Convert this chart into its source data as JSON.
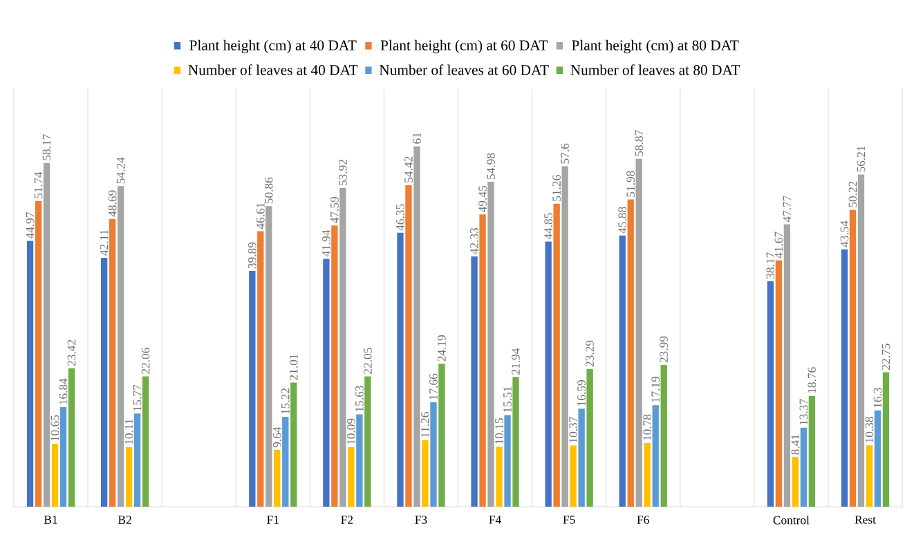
{
  "chart_data": {
    "type": "bar",
    "categories": [
      "B1",
      "B2",
      null,
      "F1",
      "F2",
      "F3",
      "F4",
      "F5",
      "F6",
      null,
      "Control",
      "Rest"
    ],
    "series": [
      {
        "name": "Plant height (cm) at 40 DAT",
        "color": "#4472c4",
        "values": [
          44.97,
          42.11,
          null,
          39.89,
          41.94,
          46.35,
          42.33,
          44.85,
          45.88,
          null,
          38.17,
          43.54
        ]
      },
      {
        "name": "Plant height (cm) at 60 DAT",
        "color": "#ed7d31",
        "values": [
          51.74,
          48.69,
          null,
          46.61,
          47.59,
          54.42,
          49.45,
          51.26,
          51.98,
          null,
          41.67,
          50.22
        ]
      },
      {
        "name": "Plant height (cm) at 80 DAT",
        "color": "#a5a5a5",
        "values": [
          58.17,
          54.24,
          null,
          50.86,
          53.92,
          61,
          54.98,
          57.6,
          58.87,
          null,
          47.77,
          56.21
        ]
      },
      {
        "name": "Number of leaves at 40 DAT",
        "color": "#ffc000",
        "values": [
          10.65,
          10.11,
          null,
          9.64,
          10.09,
          11.26,
          10.15,
          10.37,
          10.78,
          null,
          8.41,
          10.38
        ]
      },
      {
        "name": "Number of leaves at 60 DAT",
        "color": "#5b9bd5",
        "values": [
          16.84,
          15.77,
          null,
          15.22,
          15.63,
          17.66,
          15.51,
          16.59,
          17.19,
          null,
          13.37,
          16.3
        ]
      },
      {
        "name": "Number of leaves at 80 DAT",
        "color": "#70ad47",
        "values": [
          23.42,
          22.06,
          null,
          21.01,
          22.05,
          24.19,
          21.94,
          23.29,
          23.99,
          null,
          18.76,
          22.75
        ]
      }
    ],
    "data_labels": true,
    "grid": "x",
    "legend": "top"
  }
}
